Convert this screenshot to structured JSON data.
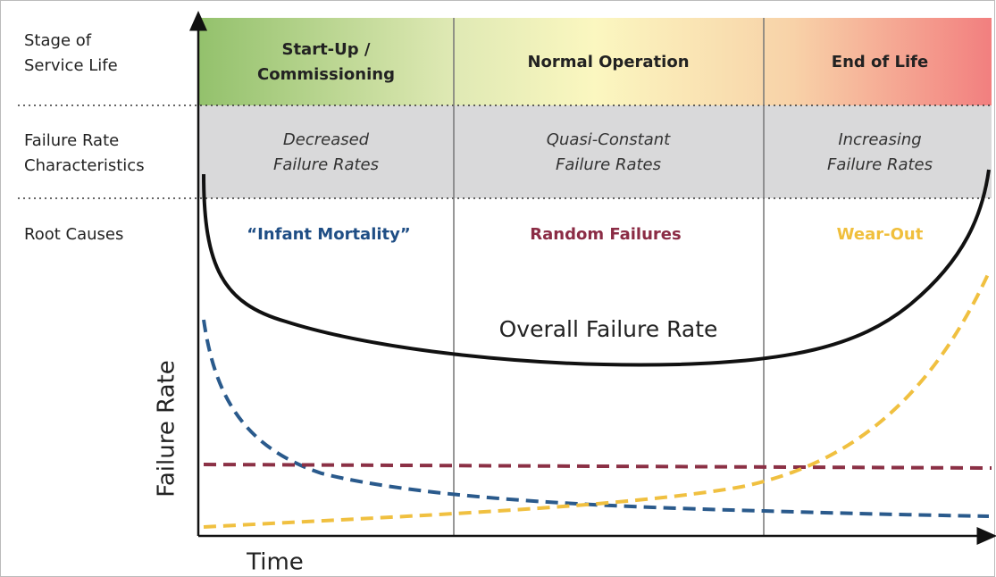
{
  "row_labels": [
    [
      "Stage of",
      "Service Life"
    ],
    [
      "Failure Rate",
      "Characteristics"
    ],
    [
      "Root Causes"
    ]
  ],
  "stages": [
    {
      "name": [
        "Start-Up /",
        "Commissioning"
      ],
      "characteristics": [
        "Decreased",
        "Failure Rates"
      ],
      "root_cause": "“Infant Mortality”"
    },
    {
      "name": [
        "Normal Operation"
      ],
      "characteristics": [
        "Quasi-Constant",
        "Failure Rates"
      ],
      "root_cause": "Random Failures"
    },
    {
      "name": [
        "End of Life"
      ],
      "characteristics": [
        "Increasing",
        "Failure Rates"
      ],
      "root_cause": "Wear-Out"
    }
  ],
  "curve_label": "Overall Failure Rate",
  "y_axis_label": "Failure Rate",
  "x_axis_label": "Time"
}
